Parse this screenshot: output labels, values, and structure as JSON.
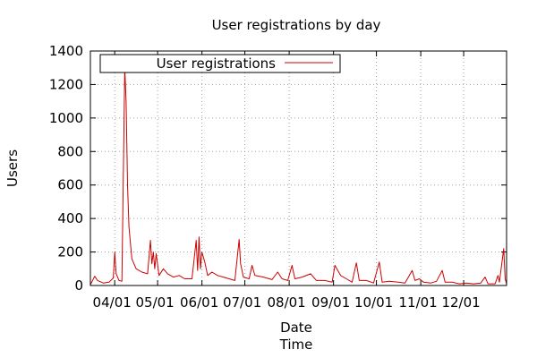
{
  "chart_data": {
    "type": "line",
    "title": "User registrations by day",
    "xlabel": "Date",
    "xlabel2": "Time",
    "ylabel": "Users",
    "ylim": [
      0,
      1400
    ],
    "y_ticks": [
      0,
      200,
      400,
      600,
      800,
      1000,
      1200,
      1400
    ],
    "x_range": [
      "2012-03-15",
      "2012-12-31"
    ],
    "x_ticks": [
      {
        "date": "2012-04-01",
        "label": "04/01"
      },
      {
        "date": "2012-05-01",
        "label": "05/01"
      },
      {
        "date": "2012-06-01",
        "label": "06/01"
      },
      {
        "date": "2012-07-01",
        "label": "07/01"
      },
      {
        "date": "2012-08-01",
        "label": "08/01"
      },
      {
        "date": "2012-09-01",
        "label": "09/01"
      },
      {
        "date": "2012-10-01",
        "label": "10/01"
      },
      {
        "date": "2012-11-01",
        "label": "11/01"
      },
      {
        "date": "2012-12-01",
        "label": "12/01"
      }
    ],
    "grid": true,
    "legend": {
      "position": "top-left",
      "entries": [
        "User registrations"
      ]
    },
    "series": [
      {
        "name": "User registrations",
        "color": "#cc0000",
        "points": [
          [
            "2012-03-15",
            5
          ],
          [
            "2012-03-18",
            55
          ],
          [
            "2012-03-20",
            30
          ],
          [
            "2012-03-24",
            15
          ],
          [
            "2012-03-28",
            20
          ],
          [
            "2012-03-31",
            45
          ],
          [
            "2012-04-01",
            200
          ],
          [
            "2012-04-02",
            70
          ],
          [
            "2012-04-04",
            30
          ],
          [
            "2012-04-06",
            25
          ],
          [
            "2012-04-08",
            1300
          ],
          [
            "2012-04-09",
            1100
          ],
          [
            "2012-04-10",
            600
          ],
          [
            "2012-04-11",
            350
          ],
          [
            "2012-04-13",
            160
          ],
          [
            "2012-04-16",
            100
          ],
          [
            "2012-04-20",
            80
          ],
          [
            "2012-04-24",
            70
          ],
          [
            "2012-04-26",
            270
          ],
          [
            "2012-04-27",
            130
          ],
          [
            "2012-04-28",
            200
          ],
          [
            "2012-04-29",
            100
          ],
          [
            "2012-04-30",
            190
          ],
          [
            "2012-05-02",
            60
          ],
          [
            "2012-05-05",
            100
          ],
          [
            "2012-05-08",
            70
          ],
          [
            "2012-05-12",
            50
          ],
          [
            "2012-05-16",
            60
          ],
          [
            "2012-05-20",
            40
          ],
          [
            "2012-05-25",
            40
          ],
          [
            "2012-05-28",
            270
          ],
          [
            "2012-05-29",
            90
          ],
          [
            "2012-05-30",
            290
          ],
          [
            "2012-05-31",
            100
          ],
          [
            "2012-06-01",
            200
          ],
          [
            "2012-06-03",
            140
          ],
          [
            "2012-06-05",
            60
          ],
          [
            "2012-06-08",
            80
          ],
          [
            "2012-06-12",
            60
          ],
          [
            "2012-06-16",
            50
          ],
          [
            "2012-06-20",
            40
          ],
          [
            "2012-06-24",
            30
          ],
          [
            "2012-06-27",
            275
          ],
          [
            "2012-06-28",
            130
          ],
          [
            "2012-06-30",
            50
          ],
          [
            "2012-07-04",
            40
          ],
          [
            "2012-07-06",
            120
          ],
          [
            "2012-07-08",
            60
          ],
          [
            "2012-07-14",
            50
          ],
          [
            "2012-07-20",
            35
          ],
          [
            "2012-07-24",
            80
          ],
          [
            "2012-07-27",
            40
          ],
          [
            "2012-07-31",
            30
          ],
          [
            "2012-08-03",
            120
          ],
          [
            "2012-08-05",
            40
          ],
          [
            "2012-08-10",
            50
          ],
          [
            "2012-08-16",
            70
          ],
          [
            "2012-08-20",
            30
          ],
          [
            "2012-08-26",
            30
          ],
          [
            "2012-08-31",
            20
          ],
          [
            "2012-09-02",
            120
          ],
          [
            "2012-09-06",
            60
          ],
          [
            "2012-09-10",
            40
          ],
          [
            "2012-09-14",
            20
          ],
          [
            "2012-09-17",
            135
          ],
          [
            "2012-09-19",
            30
          ],
          [
            "2012-09-24",
            30
          ],
          [
            "2012-09-29",
            15
          ],
          [
            "2012-10-03",
            140
          ],
          [
            "2012-10-05",
            20
          ],
          [
            "2012-10-10",
            25
          ],
          [
            "2012-10-16",
            20
          ],
          [
            "2012-10-21",
            15
          ],
          [
            "2012-10-26",
            90
          ],
          [
            "2012-10-28",
            30
          ],
          [
            "2012-10-31",
            40
          ],
          [
            "2012-11-03",
            20
          ],
          [
            "2012-11-08",
            15
          ],
          [
            "2012-11-12",
            25
          ],
          [
            "2012-11-16",
            90
          ],
          [
            "2012-11-18",
            20
          ],
          [
            "2012-11-23",
            20
          ],
          [
            "2012-11-28",
            10
          ],
          [
            "2012-12-03",
            15
          ],
          [
            "2012-12-08",
            10
          ],
          [
            "2012-12-13",
            15
          ],
          [
            "2012-12-16",
            50
          ],
          [
            "2012-12-18",
            10
          ],
          [
            "2012-12-23",
            10
          ],
          [
            "2012-12-25",
            60
          ],
          [
            "2012-12-26",
            20
          ],
          [
            "2012-12-29",
            220
          ],
          [
            "2012-12-30",
            40
          ],
          [
            "2012-12-31",
            10
          ]
        ]
      }
    ]
  }
}
